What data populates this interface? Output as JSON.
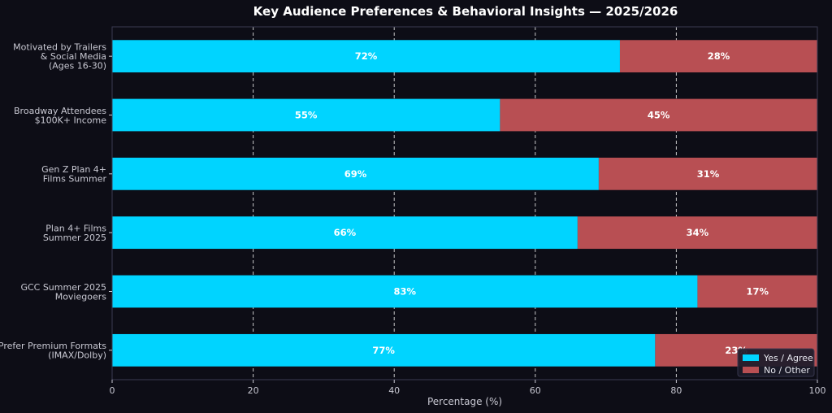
{
  "chart_data": {
    "type": "bar",
    "orientation": "horizontal",
    "stacked": true,
    "title": "Key Audience Preferences & Behavioral Insights — 2025/2026",
    "xlabel": "Percentage (%)",
    "ylabel": "",
    "xlim": [
      0,
      100
    ],
    "xticks": [
      0,
      20,
      40,
      60,
      80,
      100
    ],
    "grid": "x-dashed",
    "legend_position": "bottom-right",
    "categories": [
      [
        "Motivated by Trailers",
        "& Social Media",
        "(Ages 16-30)"
      ],
      [
        "Broadway Attendees",
        "$100K+ Income"
      ],
      [
        "Gen Z Plan 4+",
        "Films Summer"
      ],
      [
        "Plan 4+ Films",
        "Summer 2025"
      ],
      [
        "GCC Summer 2025",
        "Moviegoers"
      ],
      [
        "Prefer Premium Formats",
        "(IMAX/Dolby)"
      ]
    ],
    "series": [
      {
        "name": "Yes / Agree",
        "color": "#00d4ff",
        "values": [
          72,
          55,
          69,
          66,
          83,
          77
        ]
      },
      {
        "name": "No / Other",
        "color": "#b84f53",
        "values": [
          28,
          45,
          31,
          34,
          17,
          23
        ]
      }
    ],
    "value_suffix": "%"
  },
  "colors": {
    "background": "#0d0d16",
    "plot_border": "#3a3a52",
    "grid": "#e8e8e8"
  }
}
